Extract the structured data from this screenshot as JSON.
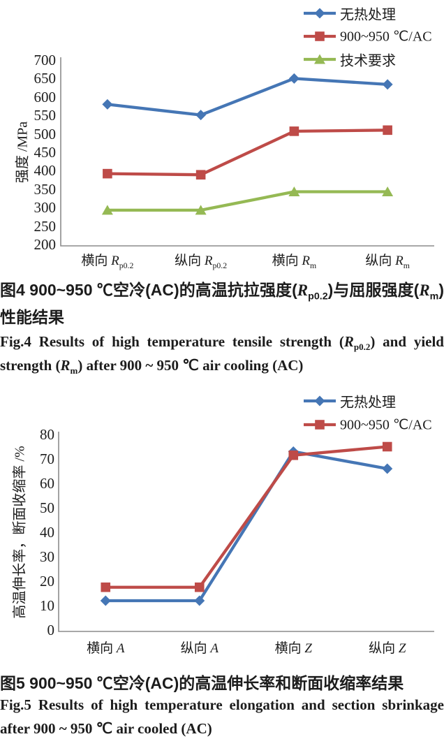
{
  "page": {
    "background": "#ffffff"
  },
  "figure4": {
    "caption_zh": "图4  900~950 ℃空冷(AC)的高温抗拉强度(*R*_{p0.2})与屈服强度(*R*_{m})性能结果",
    "caption_en": "Fig.4  Results of high temperature tensile strength (*R*_{p0.2}) and yield strength (*R*_{m}) after 900 ~ 950 ℃ air cooling (AC)"
  },
  "figure5": {
    "caption_zh": "图5  900~950 ℃空冷(AC)的高温伸长率和断面收缩率结果",
    "caption_en": "Fig.5  Results of high temperature elongation and section sbrinkage after 900 ~ 950 ℃ air cooled (AC)"
  },
  "chart_data": [
    {
      "type": "line",
      "categories": [
        "横向 *R*_{p0.2}",
        "纵向 *R*_{p0.2}",
        "横向 *R*_{m}",
        "纵向 *R*_{m}"
      ],
      "series": [
        {
          "name": "无热处理",
          "marker": "diamond",
          "color": "#4576B5",
          "values": [
            580,
            551,
            650,
            634
          ]
        },
        {
          "name": "900~950 ℃/AC",
          "marker": "square",
          "color": "#BE4B48",
          "values": [
            392,
            389,
            507,
            510
          ]
        },
        {
          "name": "技术要求",
          "marker": "triangle",
          "color": "#95B954",
          "values": [
            293,
            293,
            343,
            343
          ]
        }
      ],
      "xlabel": "",
      "ylabel": "强度 /MPa",
      "ylim": [
        200,
        700
      ],
      "ytick_step": 50,
      "grid": false,
      "legend_position": "top-right",
      "axis_color": "#8c8c8c"
    },
    {
      "type": "line",
      "categories": [
        "横向 *A*",
        "纵向 *A*",
        "横向 *Z*",
        "纵向 *Z*"
      ],
      "series": [
        {
          "name": "无热处理",
          "marker": "diamond",
          "color": "#4576B5",
          "values": [
            12,
            12,
            73,
            66
          ]
        },
        {
          "name": "900~950 ℃/AC",
          "marker": "square",
          "color": "#BE4B48",
          "values": [
            17.5,
            17.5,
            71.5,
            75
          ]
        }
      ],
      "xlabel": "",
      "ylabel": "高温伸长率，断面收缩率 /%",
      "ylim": [
        0,
        80
      ],
      "ytick_step": 10,
      "grid": false,
      "legend_position": "top-right",
      "axis_color": "#8c8c8c"
    }
  ]
}
